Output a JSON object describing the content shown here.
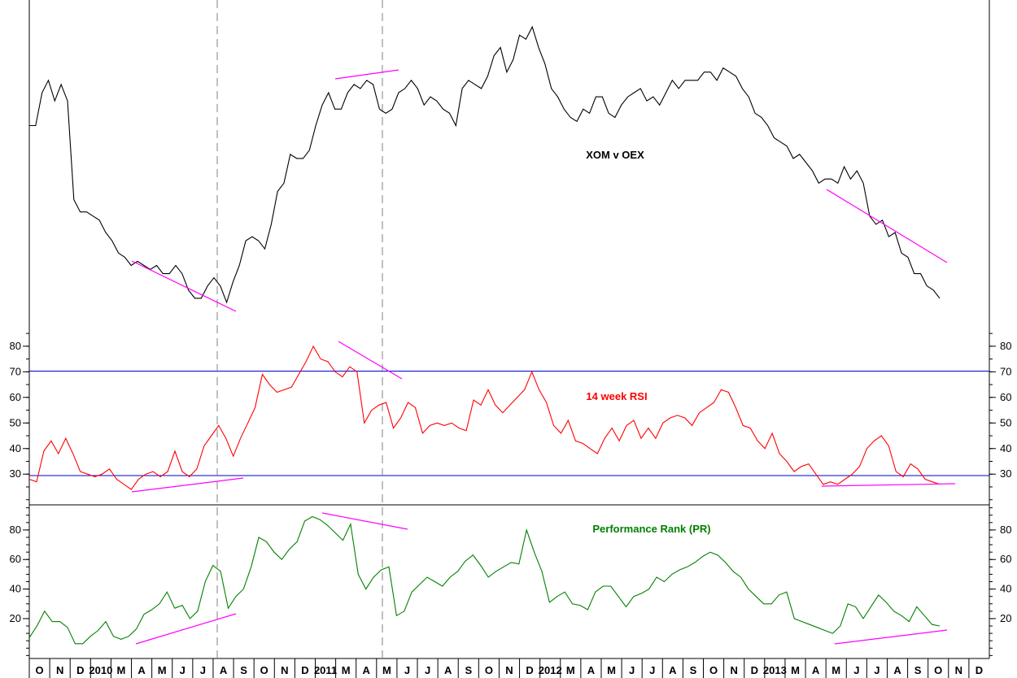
{
  "chart_data": [
    {
      "type": "line",
      "title": "XOM v OEX",
      "title_color": "#000000",
      "series": [
        {
          "color": "#000000",
          "values": [
            63,
            63,
            71,
            74,
            69,
            73,
            69,
            45,
            42,
            42,
            41,
            40,
            37,
            35,
            32,
            31,
            29,
            30,
            29,
            28,
            29,
            27,
            27,
            29,
            27,
            23,
            21,
            21,
            24,
            26,
            24,
            20,
            25,
            29,
            35,
            36,
            35,
            33,
            39,
            47,
            49,
            56,
            55,
            55,
            57,
            63,
            68,
            71,
            67,
            67,
            71,
            73,
            72,
            74,
            73,
            67,
            66,
            67,
            71,
            72,
            74,
            72,
            68,
            70,
            69,
            67,
            66,
            63,
            72,
            74,
            73,
            72,
            75,
            80,
            82,
            76,
            79,
            85,
            84,
            87,
            82,
            78,
            72,
            70,
            67,
            65,
            64,
            67,
            66,
            70,
            70,
            66,
            65,
            68,
            70,
            71,
            72,
            69,
            70,
            68,
            71,
            74,
            72,
            74,
            74,
            74,
            76,
            76,
            74,
            77,
            76,
            75,
            72,
            70,
            66,
            65,
            63,
            60,
            59,
            58,
            55,
            56,
            54,
            52,
            49,
            50,
            50,
            49,
            53,
            50,
            52,
            49,
            41,
            39,
            40,
            36,
            37,
            32,
            31,
            27,
            27,
            24,
            23,
            21
          ]
        }
      ]
    },
    {
      "type": "line",
      "title": "14 week RSI",
      "title_color": "#ff0000",
      "ylim": [
        18,
        86
      ],
      "yticks": [
        30,
        40,
        50,
        60,
        70,
        80
      ],
      "reference_lines": [
        30,
        70
      ],
      "series": [
        {
          "color": "#ff0000",
          "values": [
            28,
            27,
            39,
            43,
            38,
            44,
            38,
            31,
            30,
            29,
            30,
            32,
            28,
            26,
            24,
            28,
            30,
            31,
            29,
            31,
            39,
            31,
            29,
            32,
            41,
            45,
            49,
            44,
            37,
            44,
            50,
            56,
            69,
            65,
            62,
            63,
            64,
            69,
            74,
            80,
            75,
            74,
            70,
            68,
            72,
            70,
            50,
            55,
            57,
            58,
            48,
            52,
            58,
            56,
            46,
            49,
            50,
            49,
            50,
            48,
            47,
            59,
            57,
            63,
            57,
            54,
            57,
            60,
            63,
            70,
            63,
            58,
            49,
            46,
            51,
            43,
            42,
            40,
            38,
            44,
            48,
            43,
            49,
            51,
            44,
            48,
            44,
            50,
            52,
            53,
            52,
            49,
            54,
            56,
            58,
            63,
            62,
            56,
            49,
            48,
            43,
            40,
            46,
            38,
            35,
            31,
            33,
            34,
            30,
            26,
            27,
            26,
            28,
            30,
            33,
            40,
            43,
            45,
            41,
            31,
            29,
            34,
            32,
            28,
            27,
            26
          ]
        }
      ]
    },
    {
      "type": "line",
      "title": "Performance Rank (PR)",
      "title_color": "#008000",
      "ylim": [
        -7,
        97
      ],
      "yticks": [
        20,
        40,
        60,
        80
      ],
      "series": [
        {
          "color": "#008000",
          "values": [
            7,
            15,
            25,
            18,
            18,
            14,
            3,
            3,
            8,
            12,
            18,
            8,
            6,
            8,
            13,
            23,
            26,
            30,
            38,
            27,
            29,
            20,
            25,
            45,
            56,
            52,
            27,
            35,
            40,
            55,
            75,
            72,
            65,
            60,
            67,
            72,
            86,
            89,
            87,
            83,
            78,
            73,
            84,
            50,
            40,
            48,
            53,
            55,
            22,
            25,
            38,
            43,
            48,
            45,
            42,
            48,
            52,
            59,
            63,
            56,
            48,
            52,
            55,
            58,
            57,
            80,
            65,
            52,
            31,
            35,
            38,
            30,
            29,
            26,
            38,
            42,
            42,
            35,
            28,
            35,
            37,
            40,
            48,
            45,
            50,
            53,
            55,
            58,
            62,
            65,
            63,
            58,
            52,
            48,
            40,
            35,
            30,
            30,
            36,
            38,
            20,
            18,
            16,
            14,
            12,
            10,
            15,
            30,
            28,
            20,
            28,
            36,
            31,
            25,
            22,
            18,
            28,
            22,
            16,
            15
          ]
        }
      ]
    },
    {
      "type": "line",
      "x_axis_labels": [
        "O",
        "N",
        "D",
        "2010",
        "M",
        "A",
        "M",
        "J",
        "J",
        "A",
        "S",
        "O",
        "N",
        "D",
        "2011",
        "M",
        "A",
        "M",
        "J",
        "J",
        "A",
        "S",
        "O",
        "N",
        "D",
        "2012",
        "M",
        "A",
        "M",
        "J",
        "J",
        "A",
        "S",
        "O",
        "N",
        "D",
        "2013",
        "M",
        "A",
        "M",
        "J",
        "J",
        "A",
        "S",
        "O",
        "N",
        "D"
      ],
      "annotations": {
        "trendline_color": "#ff00ff",
        "vertical_dashed_line_color": "#808080"
      }
    }
  ]
}
